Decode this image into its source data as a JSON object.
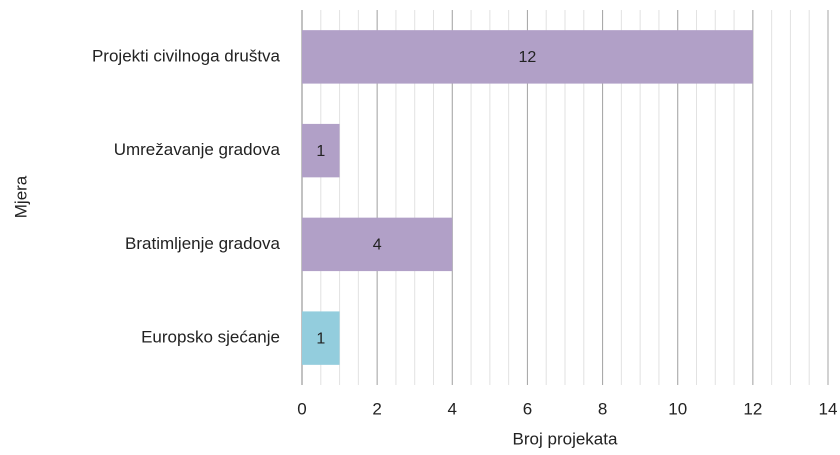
{
  "chart_data": {
    "type": "hbar",
    "xlabel": "Broj projekata",
    "ylabel": "Mjera",
    "categories": [
      "Projekti civilnoga društva",
      "Umrežavanje gradova",
      "Bratimljenje gradova",
      "Europsko sjećanje"
    ],
    "values": [
      12,
      1,
      4,
      1
    ],
    "colors": [
      "#b1a0c7",
      "#b1a0c7",
      "#b1a0c7",
      "#93cddd"
    ],
    "xlim": [
      0,
      14
    ],
    "xticks": [
      0,
      2,
      4,
      6,
      8,
      10,
      12,
      14
    ],
    "grid": true,
    "minor_grid": 0.5
  }
}
